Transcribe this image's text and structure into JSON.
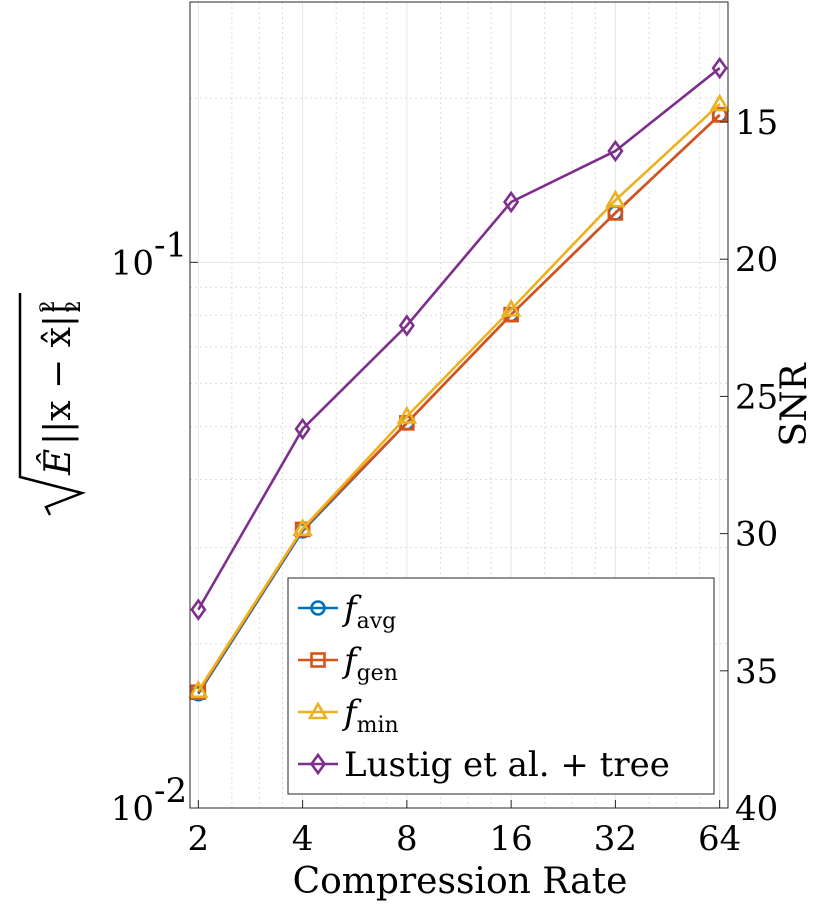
{
  "chart_data": {
    "type": "line",
    "title": "",
    "xlabel": "Compression Rate",
    "ylabel": "sqrt(Ê||x − x̂||²₂)",
    "ylabel_right": "SNR",
    "xscale": "log2",
    "yscale": "log10",
    "x": [
      2,
      4,
      8,
      16,
      32,
      64
    ],
    "xtick_labels": [
      "2",
      "4",
      "8",
      "16",
      "32",
      "64"
    ],
    "ylim": [
      0.01,
      0.3
    ],
    "yticks_left": [
      {
        "value": 0.01,
        "base": "10",
        "exp": "-2"
      },
      {
        "value": 0.1,
        "base": "10",
        "exp": "-1"
      }
    ],
    "yticks_right": [
      "15",
      "20",
      "25",
      "30",
      "35",
      "40"
    ],
    "grid": true,
    "legend_position": "bottom-right",
    "series": [
      {
        "name": "f_avg",
        "base": "f",
        "sub": "avg",
        "color": "#0072BD",
        "marker": "circle",
        "values": [
          0.0162,
          0.0322,
          0.0508,
          0.0802,
          0.1232,
          0.1863
        ]
      },
      {
        "name": "f_gen",
        "base": "f",
        "sub": "gen",
        "color": "#D95319",
        "marker": "square",
        "values": [
          0.0163,
          0.0324,
          0.0508,
          0.0802,
          0.1232,
          0.1863
        ]
      },
      {
        "name": "f_min",
        "base": "f",
        "sub": "min",
        "color": "#EDB120",
        "marker": "triangle",
        "values": [
          0.0164,
          0.0325,
          0.0522,
          0.082,
          0.13,
          0.195
        ]
      },
      {
        "name": "Lustig et al. + tree",
        "base": "Lustig et al. + tree",
        "sub": "",
        "color": "#7E2F8E",
        "marker": "diamond",
        "values": [
          0.0231,
          0.0495,
          0.0766,
          0.129,
          0.16,
          0.227
        ]
      }
    ]
  }
}
